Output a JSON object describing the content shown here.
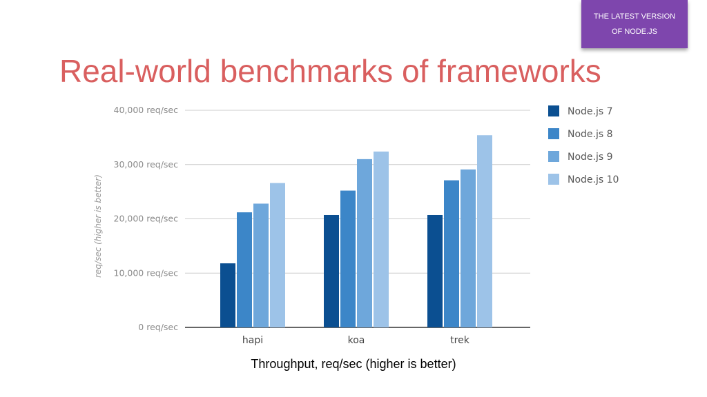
{
  "badge": {
    "line1": "THE LATEST VERSION",
    "line2": "OF NODE.JS",
    "color": "#7e46ad"
  },
  "title": "Real-world benchmarks of frameworks",
  "caption": "Throughput, req/sec (higher is better)",
  "chart_data": {
    "type": "bar",
    "title": "Real-world benchmarks of frameworks",
    "xlabel": "",
    "ylabel": "req/sec (higher is better)",
    "ylim": [
      0,
      40000
    ],
    "grid": true,
    "legend_position": "right",
    "yticks": [
      {
        "value": 0,
        "label": "0 req/sec"
      },
      {
        "value": 10000,
        "label": "10,000 req/sec"
      },
      {
        "value": 20000,
        "label": "20,000 req/sec"
      },
      {
        "value": 30000,
        "label": "30,000 req/sec"
      },
      {
        "value": 40000,
        "label": "40,000 req/sec"
      }
    ],
    "categories": [
      "hapi",
      "koa",
      "trek"
    ],
    "series": [
      {
        "name": "Node.js 7",
        "color": "#0b4f91",
        "values": [
          11800,
          20700,
          20700
        ]
      },
      {
        "name": "Node.js 8",
        "color": "#3c86c8",
        "values": [
          21200,
          25200,
          27100
        ]
      },
      {
        "name": "Node.js 9",
        "color": "#6ea7db",
        "values": [
          22800,
          31000,
          29100
        ]
      },
      {
        "name": "Node.js 10",
        "color": "#9dc3e8",
        "values": [
          26600,
          32400,
          35400
        ]
      }
    ]
  }
}
